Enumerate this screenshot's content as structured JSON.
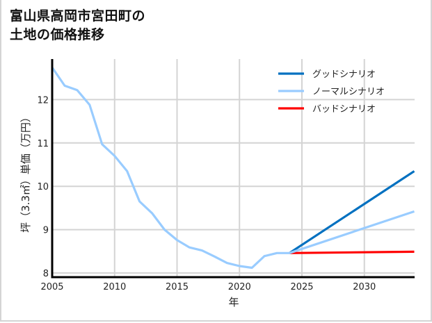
{
  "title": {
    "line1": "富山県高岡市宮田町の",
    "line2": "土地の価格推移"
  },
  "colors": {
    "good": "#0070c0",
    "normal": "#99ccff",
    "bad": "#ff0000",
    "grid": "#d4d4d4",
    "axis": "#000000"
  },
  "legend": [
    {
      "label": "グッドシナリオ",
      "color": "#0070c0"
    },
    {
      "label": "ノーマルシナリオ",
      "color": "#99ccff"
    },
    {
      "label": "バッドシナリオ",
      "color": "#ff0000"
    }
  ],
  "axes": {
    "xlabel": "年",
    "ylabel": "坪（3.3㎡）単価（万円）",
    "xticks": [
      "2005",
      "2010",
      "2015",
      "2020",
      "2025",
      "2030"
    ],
    "yticks": [
      "8",
      "9",
      "10",
      "11",
      "12"
    ]
  },
  "chart_data": {
    "type": "line",
    "title": "富山県高岡市宮田町の土地の価格推移",
    "xlabel": "年",
    "ylabel": "坪（3.3㎡）単価（万円）",
    "xlim": [
      2005,
      2034
    ],
    "ylim": [
      7.9,
      12.9
    ],
    "grid": true,
    "legend_position": "upper right",
    "series": [
      {
        "name": "ノーマルシナリオ",
        "color": "#99ccff",
        "x": [
          2005,
          2006,
          2007,
          2008,
          2009,
          2010,
          2011,
          2012,
          2013,
          2014,
          2015,
          2016,
          2017,
          2018,
          2019,
          2020,
          2021,
          2022,
          2023,
          2024,
          2034
        ],
        "values": [
          12.74,
          12.32,
          12.22,
          11.88,
          10.97,
          10.7,
          10.35,
          9.65,
          9.38,
          9.0,
          8.76,
          8.59,
          8.52,
          8.38,
          8.23,
          8.16,
          8.12,
          8.39,
          8.46,
          8.46,
          9.42
        ]
      },
      {
        "name": "グッドシナリオ",
        "color": "#0070c0",
        "x": [
          2024,
          2034
        ],
        "values": [
          8.46,
          10.35
        ]
      },
      {
        "name": "バッドシナリオ",
        "color": "#ff0000",
        "x": [
          2024,
          2034
        ],
        "values": [
          8.46,
          8.49
        ]
      }
    ]
  }
}
